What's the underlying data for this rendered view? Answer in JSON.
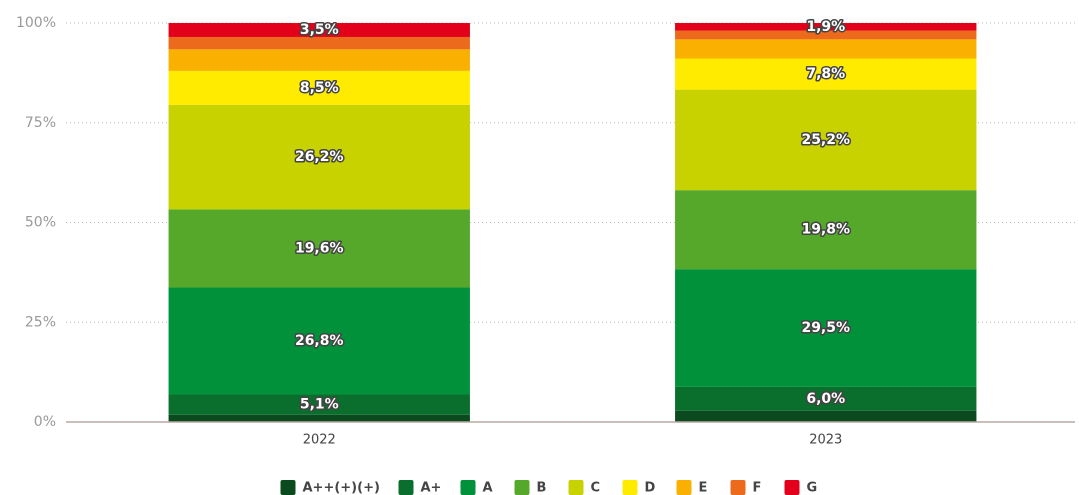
{
  "chart_data": {
    "type": "stacked_bar",
    "categories": [
      "2022",
      "2023"
    ],
    "series": [
      {
        "name": "A++(+)(+)",
        "color": "#0b4a1f",
        "values": [
          1.8,
          2.8
        ],
        "value_labels": [
          null,
          null
        ]
      },
      {
        "name": "A+",
        "color": "#0a6e2c",
        "values": [
          5.1,
          6.0
        ],
        "value_labels": [
          "5,1%",
          "6,0%"
        ]
      },
      {
        "name": "A",
        "color": "#00913a",
        "values": [
          26.8,
          29.5
        ],
        "value_labels": [
          "26,8%",
          "29,5%"
        ]
      },
      {
        "name": "B",
        "color": "#56a82a",
        "values": [
          19.6,
          19.8
        ],
        "value_labels": [
          "19,6%",
          "19,8%"
        ]
      },
      {
        "name": "C",
        "color": "#c8d200",
        "values": [
          26.2,
          25.2
        ],
        "value_labels": [
          "26,2%",
          "25,2%"
        ]
      },
      {
        "name": "D",
        "color": "#ffeb00",
        "values": [
          8.5,
          7.8
        ],
        "value_labels": [
          "8,5%",
          "7,8%"
        ]
      },
      {
        "name": "E",
        "color": "#f9b000",
        "values": [
          5.4,
          4.8
        ],
        "value_labels": [
          null,
          null
        ]
      },
      {
        "name": "F",
        "color": "#ec6a1c",
        "values": [
          3.1,
          2.2
        ],
        "value_labels": [
          null,
          null
        ]
      },
      {
        "name": "G",
        "color": "#e2001a",
        "values": [
          3.5,
          1.9
        ],
        "value_labels": [
          "3,5%",
          "1,9%"
        ]
      }
    ],
    "ylim": [
      0,
      100
    ],
    "yticks": [
      {
        "value": 0,
        "label": "0%"
      },
      {
        "value": 25,
        "label": "25%"
      },
      {
        "value": 50,
        "label": "50%"
      },
      {
        "value": 75,
        "label": "75%"
      },
      {
        "value": 100,
        "label": "100%"
      }
    ],
    "grid": true,
    "legend": "bottom"
  }
}
